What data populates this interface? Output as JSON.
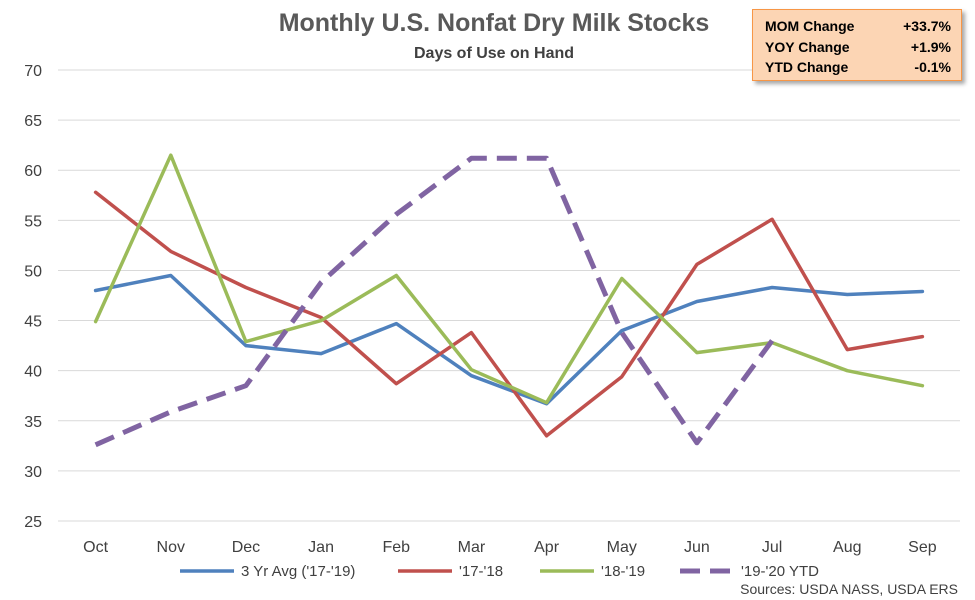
{
  "chart_data": {
    "type": "line",
    "title": "Monthly U.S. Nonfat Dry Milk Stocks",
    "subtitle": "Days of Use on Hand",
    "categories": [
      "Oct",
      "Nov",
      "Dec",
      "Jan",
      "Feb",
      "Mar",
      "Apr",
      "May",
      "Jun",
      "Jul",
      "Aug",
      "Sep"
    ],
    "ylim": [
      25,
      70
    ],
    "yticks": [
      "25",
      "30",
      "35",
      "40",
      "45",
      "50",
      "55",
      "60",
      "65",
      "70"
    ],
    "grid": true,
    "legend_position": "bottom",
    "series": [
      {
        "name": "3 Yr Avg ('17-'19)",
        "color": "#4f81bd",
        "dash": "solid",
        "values": [
          48.0,
          49.5,
          42.5,
          41.7,
          44.7,
          39.5,
          36.7,
          44.0,
          46.9,
          48.3,
          47.6,
          47.9
        ]
      },
      {
        "name": "'17-'18",
        "color": "#c0504d",
        "dash": "solid",
        "values": [
          57.8,
          51.9,
          48.3,
          45.3,
          38.7,
          43.8,
          33.5,
          39.4,
          50.6,
          55.1,
          42.1,
          43.4
        ]
      },
      {
        "name": "'18-'19",
        "color": "#9bbb59",
        "dash": "solid",
        "values": [
          44.9,
          61.5,
          42.9,
          45.0,
          49.5,
          40.1,
          36.8,
          49.2,
          41.8,
          42.8,
          40.0,
          38.5
        ]
      },
      {
        "name": "'19-'20 YTD",
        "color": "#8064a2",
        "dash": "dashed",
        "values": [
          32.6,
          35.9,
          38.5,
          48.8,
          55.6,
          61.2,
          61.2,
          43.8,
          32.8,
          43.0,
          null,
          null
        ]
      }
    ],
    "source": "Sources: USDA NASS, USDA ERS"
  },
  "stats_box": {
    "rows": [
      {
        "label": "MOM Change",
        "value": "+33.7%"
      },
      {
        "label": "YOY Change",
        "value": "+1.9%"
      },
      {
        "label": "YTD Change",
        "value": "-0.1%"
      }
    ]
  }
}
